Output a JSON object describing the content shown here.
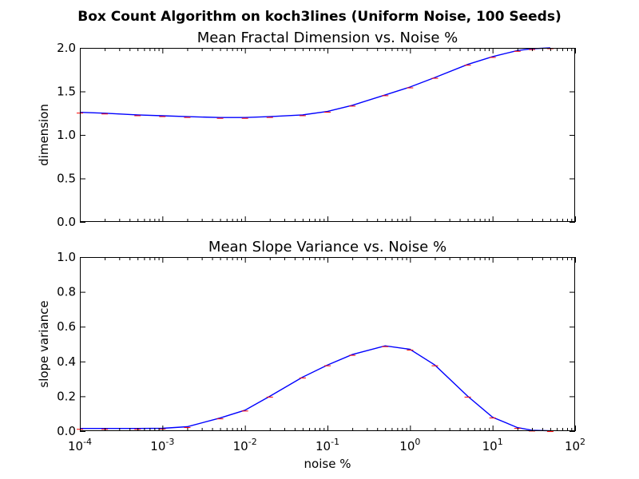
{
  "figure": {
    "suptitle": "Box Count Algorithm on koch3lines (Uniform Noise, 100 Seeds)",
    "xlabel": "noise %",
    "x_tick_labels": [
      {
        "base": "10",
        "exp": "-4"
      },
      {
        "base": "10",
        "exp": "-3"
      },
      {
        "base": "10",
        "exp": "-2"
      },
      {
        "base": "10",
        "exp": "-1"
      },
      {
        "base": "10",
        "exp": "0"
      },
      {
        "base": "10",
        "exp": "1"
      },
      {
        "base": "10",
        "exp": "2"
      }
    ],
    "colors": {
      "line": "#0000ff",
      "errorbar": "#ff0000"
    }
  },
  "chart_data": [
    {
      "type": "line",
      "title": "Mean Fractal Dimension vs. Noise %",
      "xlabel": "",
      "ylabel": "dimension",
      "xscale": "log",
      "xlim": [
        0.0001,
        100
      ],
      "ylim": [
        0,
        2
      ],
      "y_ticks": [
        "0.0",
        "0.5",
        "1.0",
        "1.5",
        "2.0"
      ],
      "x": [
        0.0001,
        0.0002,
        0.0005,
        0.001,
        0.002,
        0.005,
        0.01,
        0.02,
        0.05,
        0.1,
        0.2,
        0.5,
        1,
        2,
        5,
        10,
        20,
        30,
        50
      ],
      "y": [
        1.26,
        1.25,
        1.23,
        1.22,
        1.21,
        1.2,
        1.2,
        1.21,
        1.23,
        1.27,
        1.34,
        1.46,
        1.55,
        1.66,
        1.81,
        1.9,
        1.97,
        1.99,
        2.0
      ]
    },
    {
      "type": "line",
      "title": "Mean Slope Variance vs. Noise %",
      "xlabel": "noise %",
      "ylabel": "slope variance",
      "xscale": "log",
      "xlim": [
        0.0001,
        100
      ],
      "ylim": [
        0,
        1
      ],
      "y_ticks": [
        "0.0",
        "0.2",
        "0.4",
        "0.6",
        "0.8",
        "1.0"
      ],
      "x": [
        0.0001,
        0.0002,
        0.0005,
        0.001,
        0.002,
        0.005,
        0.01,
        0.02,
        0.05,
        0.1,
        0.2,
        0.5,
        1,
        2,
        5,
        10,
        20,
        30,
        50
      ],
      "y": [
        0.015,
        0.015,
        0.015,
        0.016,
        0.025,
        0.075,
        0.12,
        0.2,
        0.31,
        0.38,
        0.44,
        0.49,
        0.47,
        0.38,
        0.2,
        0.08,
        0.02,
        0.005,
        0.002
      ]
    }
  ]
}
